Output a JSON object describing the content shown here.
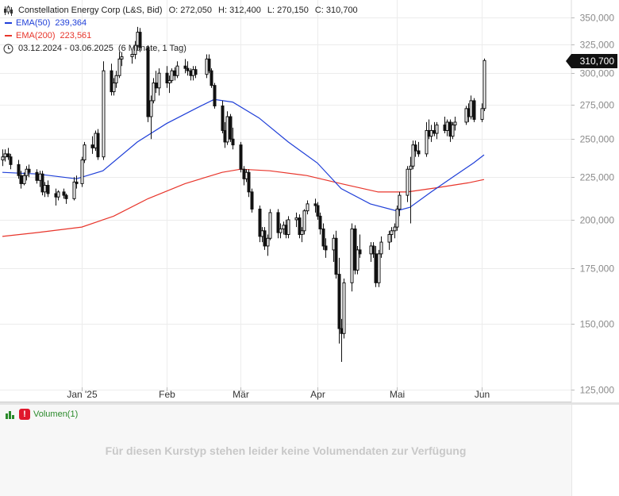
{
  "header": {
    "title": "Constellation Energy Corp (L&S, Bid)",
    "ohlc": {
      "open": "O: 272,050",
      "high": "H: 312,400",
      "low": "L: 270,150",
      "close": "C: 310,700"
    },
    "ema50": {
      "label": "EMA(50)",
      "value": "239,364",
      "color": "#1f3fd8"
    },
    "ema200": {
      "label": "EMA(200)",
      "value": "223,561",
      "color": "#e8352b"
    },
    "range": "03.12.2024 - 03.06.2025",
    "period": "(6 Monate, 1 Tag)"
  },
  "last_price": "310,700",
  "volume_panel": {
    "label": "Volumen(1)",
    "warning_icon": "!",
    "message": "Für diesen Kurstyp stehen leider keine Volumendaten zur Verfügung"
  },
  "chart_data": {
    "type": "candlestick",
    "y_scale": "log",
    "ylim": [
      122000,
      360000
    ],
    "y_ticks": [
      125000,
      150000,
      175000,
      200000,
      225000,
      250000,
      275000,
      300000,
      325000,
      350000
    ],
    "y_tick_labels": [
      "125,000",
      "150,000",
      "175,000",
      "200,000",
      "225,000",
      "250,000",
      "275,000",
      "300,000",
      "325,000",
      "350,000"
    ],
    "x_range": [
      "2024-12-03",
      "2025-06-03"
    ],
    "x_tick_labels": [
      {
        "date": "2025-01-02",
        "label": "Jan '25"
      },
      {
        "date": "2025-02-03",
        "label": "Feb"
      },
      {
        "date": "2025-03-03",
        "label": "Mär"
      },
      {
        "date": "2025-04-01",
        "label": "Apr"
      },
      {
        "date": "2025-05-01",
        "label": "Mai"
      },
      {
        "date": "2025-06-02",
        "label": "Jun"
      }
    ],
    "grid": true,
    "candles": [
      [
        "2024-12-03",
        236000,
        243000,
        232000,
        238000
      ],
      [
        "2024-12-04",
        238000,
        243000,
        235000,
        240000
      ],
      [
        "2024-12-05",
        240000,
        244000,
        236000,
        238000
      ],
      [
        "2024-12-06",
        238000,
        240000,
        230000,
        233000
      ],
      [
        "2024-12-09",
        233000,
        236000,
        224000,
        226000
      ],
      [
        "2024-12-10",
        226000,
        229000,
        218000,
        221000
      ],
      [
        "2024-12-11",
        221000,
        228000,
        220000,
        226000
      ],
      [
        "2024-12-12",
        226000,
        232000,
        223000,
        230000
      ],
      [
        "2024-12-13",
        230000,
        233000,
        225000,
        228000
      ],
      [
        "2024-12-16",
        228000,
        230000,
        221000,
        223000
      ],
      [
        "2024-12-17",
        223000,
        229000,
        219000,
        227000
      ],
      [
        "2024-12-18",
        227000,
        229000,
        214000,
        216000
      ],
      [
        "2024-12-19",
        216000,
        222000,
        213000,
        220000
      ],
      [
        "2024-12-20",
        220000,
        223000,
        213000,
        215000
      ],
      [
        "2024-12-23",
        215000,
        218000,
        208000,
        213000
      ],
      [
        "2024-12-24",
        213000,
        217000,
        211000,
        216000
      ],
      [
        "2024-12-26",
        216000,
        218000,
        212000,
        214000
      ],
      [
        "2024-12-27",
        214000,
        215000,
        209000,
        212000
      ],
      [
        "2024-12-30",
        212000,
        225000,
        211000,
        222000
      ],
      [
        "2024-12-31",
        222000,
        226000,
        218000,
        221000
      ],
      [
        "2025-01-02",
        221000,
        238000,
        219000,
        236000
      ],
      [
        "2025-01-03",
        236000,
        248000,
        234000,
        246000
      ],
      [
        "2025-01-06",
        246000,
        252000,
        240000,
        244000
      ],
      [
        "2025-01-07",
        244000,
        256000,
        242000,
        254000
      ],
      [
        "2025-01-08",
        254000,
        257000,
        236000,
        238000
      ],
      [
        "2025-01-10",
        238000,
        310000,
        236000,
        302000
      ],
      [
        "2025-01-13",
        302000,
        308000,
        282000,
        285000
      ],
      [
        "2025-01-14",
        285000,
        296000,
        282000,
        292000
      ],
      [
        "2025-01-15",
        292000,
        302000,
        288000,
        298000
      ],
      [
        "2025-01-16",
        298000,
        318000,
        296000,
        312000
      ],
      [
        "2025-01-17",
        312000,
        318000,
        306000,
        314000
      ],
      [
        "2025-01-21",
        314000,
        320000,
        308000,
        316000
      ],
      [
        "2025-01-22",
        316000,
        328000,
        312000,
        324000
      ],
      [
        "2025-01-23",
        324000,
        341000,
        320000,
        336000
      ],
      [
        "2025-01-24",
        336000,
        340000,
        318000,
        322000
      ],
      [
        "2025-01-27",
        322000,
        324000,
        262000,
        266000
      ],
      [
        "2025-01-28",
        266000,
        282000,
        250000,
        278000
      ],
      [
        "2025-01-29",
        278000,
        296000,
        276000,
        292000
      ],
      [
        "2025-01-30",
        292000,
        302000,
        284000,
        288000
      ],
      [
        "2025-01-31",
        288000,
        304000,
        282000,
        300000
      ],
      [
        "2025-02-03",
        300000,
        306000,
        288000,
        292000
      ],
      [
        "2025-02-04",
        292000,
        298000,
        284000,
        294000
      ],
      [
        "2025-02-05",
        294000,
        304000,
        292000,
        302000
      ],
      [
        "2025-02-06",
        302000,
        305000,
        294000,
        298000
      ],
      [
        "2025-02-07",
        298000,
        310000,
        296000,
        306000
      ],
      [
        "2025-02-10",
        306000,
        312000,
        300000,
        304000
      ],
      [
        "2025-02-11",
        304000,
        310000,
        298000,
        302000
      ],
      [
        "2025-02-12",
        302000,
        304000,
        294000,
        298000
      ],
      [
        "2025-02-13",
        298000,
        306000,
        294000,
        303000
      ],
      [
        "2025-02-14",
        303000,
        306000,
        296000,
        299000
      ],
      [
        "2025-02-18",
        299000,
        316000,
        296000,
        312000
      ],
      [
        "2025-02-19",
        312000,
        316000,
        300000,
        302000
      ],
      [
        "2025-02-20",
        302000,
        304000,
        288000,
        290000
      ],
      [
        "2025-02-21",
        290000,
        292000,
        272000,
        274000
      ],
      [
        "2025-02-24",
        274000,
        278000,
        254000,
        256000
      ],
      [
        "2025-02-25",
        256000,
        262000,
        244000,
        248000
      ],
      [
        "2025-02-26",
        248000,
        270000,
        246000,
        266000
      ],
      [
        "2025-02-27",
        266000,
        268000,
        248000,
        250000
      ],
      [
        "2025-02-28",
        250000,
        258000,
        243000,
        246000
      ],
      [
        "2025-03-03",
        246000,
        248000,
        228000,
        230000
      ],
      [
        "2025-03-04",
        230000,
        232000,
        220000,
        224000
      ],
      [
        "2025-03-05",
        224000,
        230000,
        222000,
        228000
      ],
      [
        "2025-03-06",
        228000,
        230000,
        213000,
        216000
      ],
      [
        "2025-03-07",
        216000,
        218000,
        204000,
        206000
      ],
      [
        "2025-03-10",
        206000,
        208000,
        188000,
        191000
      ],
      [
        "2025-03-11",
        191000,
        196000,
        188000,
        194000
      ],
      [
        "2025-03-12",
        194000,
        196000,
        184000,
        186000
      ],
      [
        "2025-03-13",
        186000,
        192000,
        181000,
        190000
      ],
      [
        "2025-03-14",
        190000,
        206000,
        189000,
        204000
      ],
      [
        "2025-03-17",
        204000,
        206000,
        190000,
        193000
      ],
      [
        "2025-03-18",
        193000,
        198000,
        190000,
        195000
      ],
      [
        "2025-03-19",
        195000,
        199000,
        192000,
        197000
      ],
      [
        "2025-03-20",
        197000,
        200000,
        190000,
        192000
      ],
      [
        "2025-03-21",
        192000,
        202000,
        190000,
        200000
      ],
      [
        "2025-03-24",
        200000,
        204000,
        196000,
        201000
      ],
      [
        "2025-03-25",
        201000,
        203000,
        190000,
        192000
      ],
      [
        "2025-03-26",
        192000,
        196000,
        188000,
        194000
      ],
      [
        "2025-03-27",
        194000,
        206000,
        192000,
        205000
      ],
      [
        "2025-03-28",
        205000,
        211000,
        203000,
        209000
      ],
      [
        "2025-03-31",
        209000,
        212000,
        204000,
        208000
      ],
      [
        "2025-04-01",
        208000,
        210000,
        200000,
        202000
      ],
      [
        "2025-04-02",
        202000,
        204000,
        192000,
        195000
      ],
      [
        "2025-04-03",
        195000,
        198000,
        184000,
        186000
      ],
      [
        "2025-04-04",
        186000,
        190000,
        180000,
        184000
      ],
      [
        "2025-04-07",
        184000,
        192000,
        178000,
        190000
      ],
      [
        "2025-04-08",
        190000,
        194000,
        170000,
        172000
      ],
      [
        "2025-04-09",
        172000,
        180000,
        142000,
        148000
      ],
      [
        "2025-04-10",
        148000,
        152000,
        135000,
        146000
      ],
      [
        "2025-04-11",
        146000,
        170000,
        144000,
        168000
      ],
      [
        "2025-04-14",
        168000,
        198000,
        164000,
        195000
      ],
      [
        "2025-04-15",
        195000,
        197000,
        172000,
        174000
      ],
      [
        "2025-04-16",
        174000,
        186000,
        172000,
        184000
      ],
      [
        "2025-04-17",
        184000,
        192000,
        180000,
        182000
      ],
      [
        "2025-04-21",
        182000,
        188000,
        178000,
        186000
      ],
      [
        "2025-04-22",
        186000,
        188000,
        180000,
        182000
      ],
      [
        "2025-04-23",
        182000,
        186000,
        166000,
        168000
      ],
      [
        "2025-04-24",
        168000,
        184000,
        166000,
        182000
      ],
      [
        "2025-04-25",
        182000,
        191000,
        180000,
        188000
      ],
      [
        "2025-04-28",
        188000,
        194000,
        184000,
        192000
      ],
      [
        "2025-04-29",
        192000,
        196000,
        188000,
        194000
      ],
      [
        "2025-04-30",
        194000,
        198000,
        190000,
        196000
      ],
      [
        "2025-05-01",
        196000,
        208000,
        194000,
        206000
      ],
      [
        "2025-05-02",
        206000,
        216000,
        202000,
        214000
      ],
      [
        "2025-05-05",
        214000,
        232000,
        210000,
        230000
      ],
      [
        "2025-05-06",
        230000,
        238000,
        198000,
        232000
      ],
      [
        "2025-05-07",
        232000,
        249000,
        230000,
        246000
      ],
      [
        "2025-05-08",
        246000,
        249000,
        238000,
        242000
      ],
      [
        "2025-05-09",
        242000,
        248000,
        238000,
        240000
      ],
      [
        "2025-05-12",
        240000,
        262000,
        238000,
        256000
      ],
      [
        "2025-05-13",
        256000,
        264000,
        250000,
        252000
      ],
      [
        "2025-05-14",
        252000,
        260000,
        248000,
        256000
      ],
      [
        "2025-05-15",
        256000,
        262000,
        252000,
        254000
      ],
      [
        "2025-05-16",
        254000,
        262000,
        250000,
        260000
      ],
      [
        "2025-05-19",
        260000,
        266000,
        254000,
        256000
      ],
      [
        "2025-05-20",
        256000,
        264000,
        252000,
        262000
      ],
      [
        "2025-05-21",
        262000,
        264000,
        248000,
        252000
      ],
      [
        "2025-05-22",
        252000,
        262000,
        250000,
        260000
      ],
      [
        "2025-05-23",
        260000,
        266000,
        256000,
        262000
      ],
      [
        "2025-05-27",
        262000,
        274000,
        260000,
        272000
      ],
      [
        "2025-05-28",
        272000,
        276000,
        262000,
        266000
      ],
      [
        "2025-05-29",
        266000,
        282000,
        264000,
        278000
      ],
      [
        "2025-05-30",
        278000,
        280000,
        262000,
        264000
      ],
      [
        "2025-06-02",
        264000,
        276000,
        262000,
        272000
      ],
      [
        "2025-06-03",
        272050,
        312400,
        270150,
        310700
      ]
    ],
    "series": [
      {
        "name": "EMA(50)",
        "color": "#1f3fd8",
        "points": [
          [
            "2024-12-03",
            228000
          ],
          [
            "2024-12-16",
            227000
          ],
          [
            "2024-12-31",
            224000
          ],
          [
            "2025-01-10",
            229000
          ],
          [
            "2025-01-23",
            248000
          ],
          [
            "2025-02-03",
            261000
          ],
          [
            "2025-02-14",
            272000
          ],
          [
            "2025-02-21",
            279000
          ],
          [
            "2025-02-28",
            277000
          ],
          [
            "2025-03-10",
            265000
          ],
          [
            "2025-03-21",
            248000
          ],
          [
            "2025-04-01",
            234000
          ],
          [
            "2025-04-10",
            218000
          ],
          [
            "2025-04-21",
            209000
          ],
          [
            "2025-05-01",
            205000
          ],
          [
            "2025-05-06",
            207000
          ],
          [
            "2025-05-14",
            216000
          ],
          [
            "2025-05-23",
            226000
          ],
          [
            "2025-05-30",
            234000
          ],
          [
            "2025-06-03",
            239364
          ]
        ]
      },
      {
        "name": "EMA(200)",
        "color": "#e8352b",
        "points": [
          [
            "2024-12-03",
            191000
          ],
          [
            "2024-12-16",
            193000
          ],
          [
            "2025-01-02",
            196000
          ],
          [
            "2025-01-14",
            202000
          ],
          [
            "2025-01-27",
            212000
          ],
          [
            "2025-02-10",
            221000
          ],
          [
            "2025-02-24",
            228000
          ],
          [
            "2025-03-03",
            230000
          ],
          [
            "2025-03-14",
            229000
          ],
          [
            "2025-03-28",
            226000
          ],
          [
            "2025-04-10",
            221000
          ],
          [
            "2025-04-24",
            216000
          ],
          [
            "2025-05-05",
            216000
          ],
          [
            "2025-05-16",
            218500
          ],
          [
            "2025-05-28",
            221500
          ],
          [
            "2025-06-03",
            223561
          ]
        ]
      }
    ]
  }
}
